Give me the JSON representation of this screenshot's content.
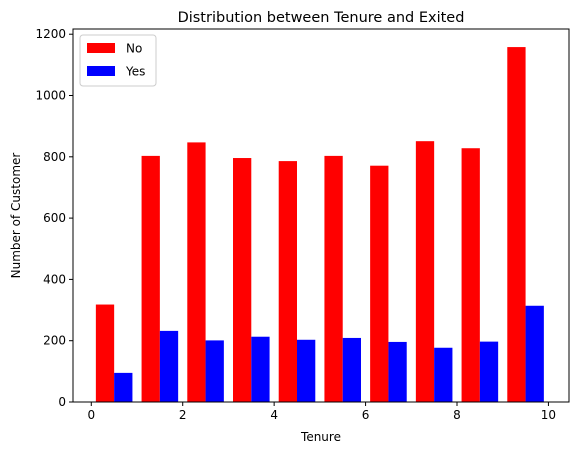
{
  "chart_data": {
    "type": "bar",
    "title": "Distribution between Tenure and Exited",
    "xlabel": "Tenure",
    "ylabel": "Number of Customer",
    "xlim": [
      -0.4,
      10.45
    ],
    "ylim": [
      0,
      1217
    ],
    "xticks": [
      0,
      2,
      4,
      6,
      8,
      10
    ],
    "yticks": [
      0,
      200,
      400,
      600,
      800,
      1000,
      1200
    ],
    "grid": false,
    "legend_position": "top-left",
    "bin_edges": [
      0,
      1,
      2,
      3,
      4,
      5,
      6,
      7,
      8,
      9,
      10
    ],
    "series": [
      {
        "name": "No",
        "color": "#ff0000",
        "values": [
          318,
          803,
          847,
          796,
          786,
          803,
          771,
          851,
          828,
          1158
        ]
      },
      {
        "name": "Yes",
        "color": "#0000ff",
        "values": [
          95,
          232,
          201,
          213,
          203,
          209,
          196,
          177,
          197,
          314
        ]
      }
    ]
  }
}
